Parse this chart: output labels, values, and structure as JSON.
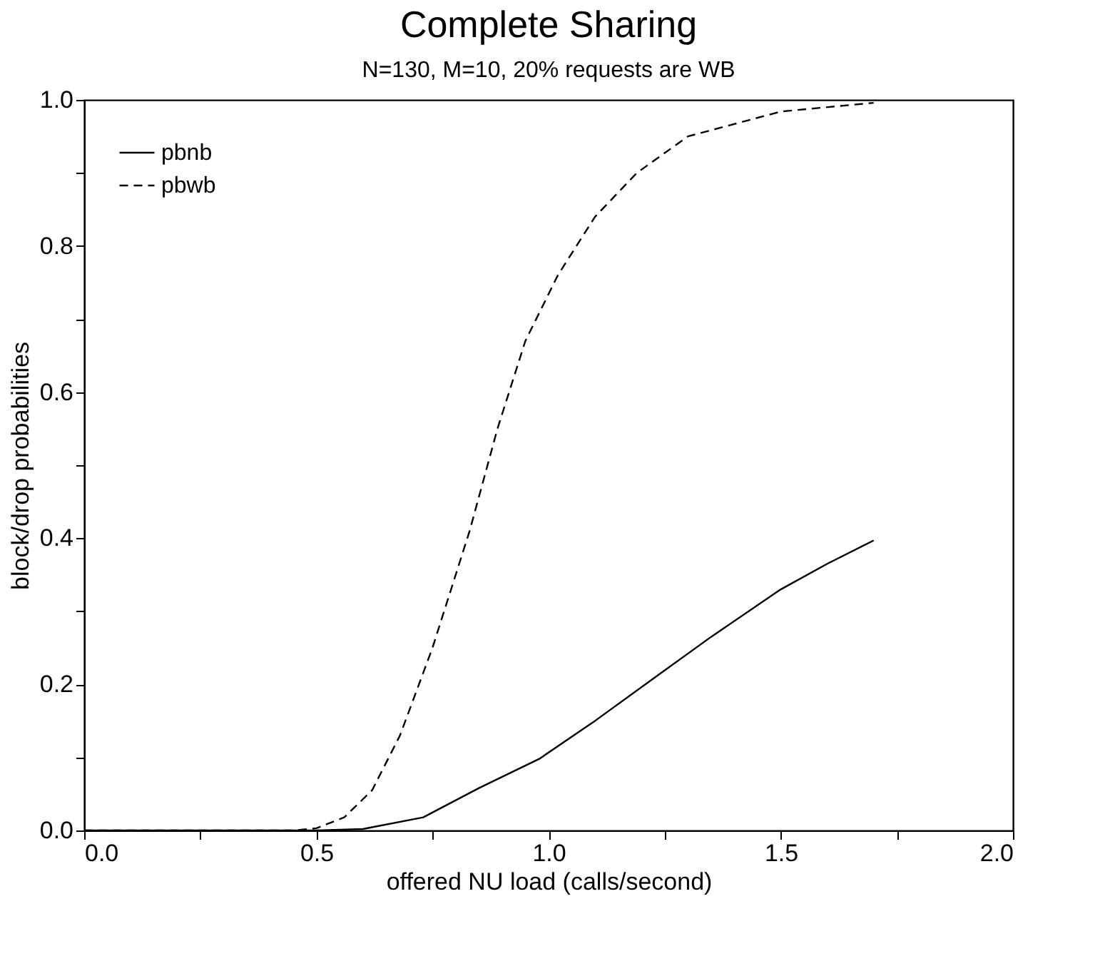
{
  "chart_data": {
    "type": "line",
    "title": "Complete Sharing",
    "subtitle": "N=130, M=10, 20% requests are WB",
    "xlabel": "offered NU load  (calls/second)",
    "ylabel": "block/drop probabilities",
    "xlim": [
      0,
      2
    ],
    "ylim": [
      0,
      1
    ],
    "xticks": [
      {
        "value": 0,
        "label": "0.0"
      },
      {
        "value": 0.25,
        "label": null
      },
      {
        "value": 0.5,
        "label": "0.5"
      },
      {
        "value": 0.75,
        "label": null
      },
      {
        "value": 1,
        "label": "1.0"
      },
      {
        "value": 1.25,
        "label": null
      },
      {
        "value": 1.5,
        "label": "1.5"
      },
      {
        "value": 1.75,
        "label": null
      },
      {
        "value": 2,
        "label": "2.0"
      }
    ],
    "yticks": [
      {
        "value": 0,
        "label": "0.0"
      },
      {
        "value": 0.1,
        "label": null
      },
      0.2,
      {
        "value": 0.3,
        "label": null
      },
      0.4,
      {
        "value": 0.5,
        "label": null
      },
      0.6,
      {
        "value": 0.7,
        "label": null
      },
      0.8,
      {
        "value": 0.9,
        "label": null
      },
      {
        "value": 1,
        "label": "1.0"
      }
    ],
    "legend": "top left",
    "grid": false,
    "series": [
      {
        "name": "pbnb",
        "color": "#000000",
        "line_style": "solid",
        "x": [
          0,
          0.5,
          0.6,
          0.73,
          0.85,
          0.98,
          1.1,
          1.23,
          1.35,
          1.5,
          1.6,
          1.7
        ],
        "values": [
          0,
          0,
          0.002,
          0.018,
          0.058,
          0.098,
          0.15,
          0.21,
          0.265,
          0.33,
          0.365,
          0.397
        ]
      },
      {
        "name": "pbwb",
        "color": "#000000",
        "line_style": "dashed",
        "x": [
          0,
          0.45,
          0.5,
          0.56,
          0.62,
          0.68,
          0.75,
          0.83,
          0.89,
          0.95,
          1.02,
          1.1,
          1.19,
          1.3,
          1.5,
          1.7
        ],
        "values": [
          0,
          0,
          0.003,
          0.018,
          0.055,
          0.13,
          0.25,
          0.41,
          0.55,
          0.67,
          0.76,
          0.84,
          0.9,
          0.95,
          0.984,
          0.996
        ]
      }
    ]
  }
}
